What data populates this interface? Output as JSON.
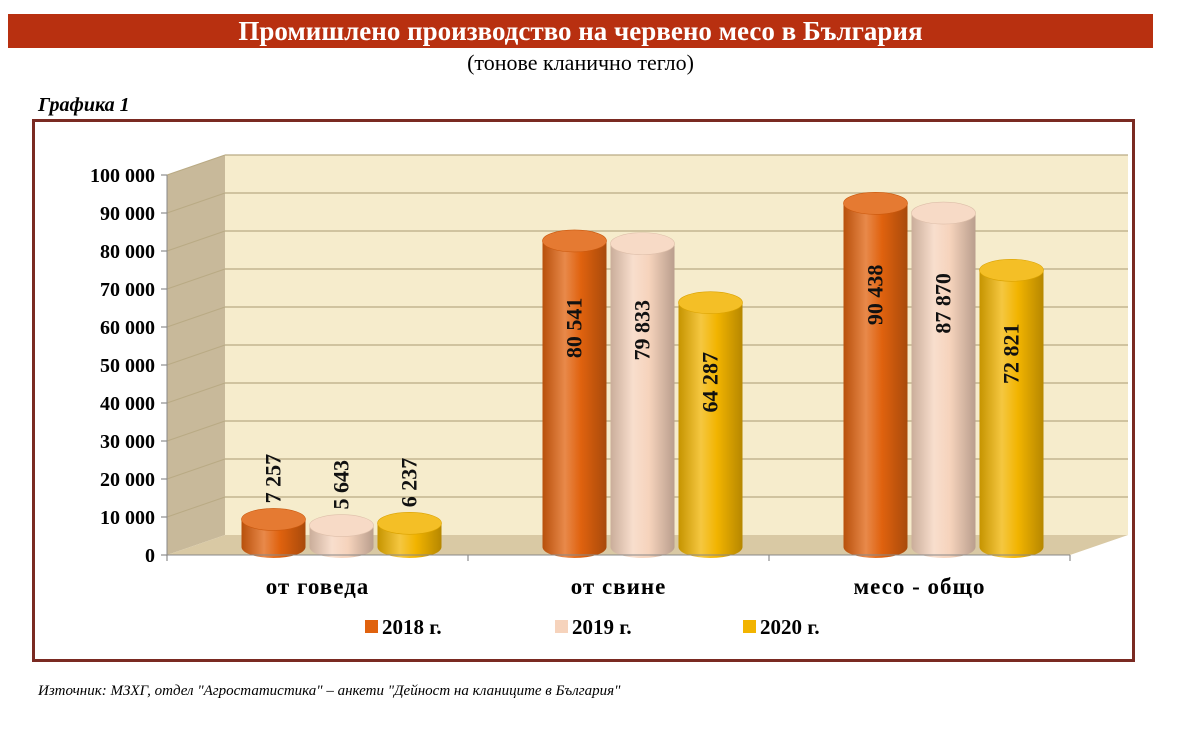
{
  "header": {
    "title": "Промишлено производство на червено месо в България",
    "subtitle": "(тонове кланично тегло)",
    "graph_label": "Графика 1"
  },
  "source_note": "Източник: МЗХГ, отдел \"Агростатистика\" – анкети \"Дейност на кланиците в България\"",
  "chart_data": {
    "type": "bar",
    "categories": [
      "от говеда",
      "от свине",
      "месо - общо"
    ],
    "series": [
      {
        "name": "2018 г.",
        "values": [
          7257,
          80541,
          90438
        ],
        "labels": [
          "7 257",
          "80 541",
          "90 438"
        ],
        "color": "#e0620e"
      },
      {
        "name": "2019 г.",
        "values": [
          5643,
          79833,
          87870
        ],
        "labels": [
          "5 643",
          "79 833",
          "87 870"
        ],
        "color": "#f6d3bc"
      },
      {
        "name": "2020 г.",
        "values": [
          6237,
          64287,
          72821
        ],
        "labels": [
          "6 237",
          "64 287",
          "72 821"
        ],
        "color": "#f2b400"
      }
    ],
    "ylim": [
      0,
      100000
    ],
    "yticks": [
      "0",
      "10 000",
      "20 000",
      "30 000",
      "40 000",
      "50 000",
      "60 000",
      "70 000",
      "80 000",
      "90 000",
      "100 000"
    ],
    "grid": true,
    "legend_position": "bottom",
    "colors": {
      "wall": "#f6eccc",
      "side_wall": "#c8b99a",
      "floor": "#d9c9a4",
      "gridline": "#b9aa84"
    }
  }
}
